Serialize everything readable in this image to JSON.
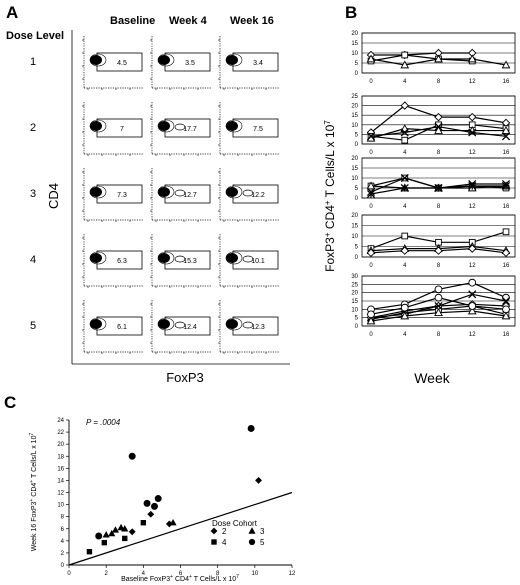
{
  "panel_labels": {
    "a": "A",
    "b": "B",
    "c": "C"
  },
  "panel_a": {
    "row_header": "Dose Level",
    "columns": [
      "Baseline",
      "Week 4",
      "Week 16"
    ],
    "rows": [
      {
        "level": "1",
        "pct": [
          "4.5",
          "3.5",
          "3.4"
        ]
      },
      {
        "level": "2",
        "pct": [
          "7",
          "17.7",
          "7.5"
        ]
      },
      {
        "level": "3",
        "pct": [
          "7.3",
          "12.7",
          "12.2"
        ]
      },
      {
        "level": "4",
        "pct": [
          "6.3",
          "15.3",
          "10.1"
        ]
      },
      {
        "level": "5",
        "pct": [
          "6.1",
          "12.4",
          "12.3"
        ]
      }
    ],
    "y_axis_label": "CD4",
    "x_axis_label": "FoxP3"
  },
  "chart_data": [
    {
      "type": "line",
      "panel": "B",
      "ylabel": "FoxP3+ CD4+ T Cells/L x 10^7",
      "xlabel": "Week",
      "x_ticks": [
        "0",
        "4",
        "8",
        "12",
        "16"
      ],
      "subpanels": [
        {
          "dose_level": 1,
          "ylim": [
            0,
            20
          ],
          "y_ticks": [
            "0",
            "5",
            "10",
            "15",
            "20"
          ],
          "series": [
            {
              "marker": "diamond",
              "x": [
                0,
                4,
                8,
                12
              ],
              "values": [
                9,
                9,
                10,
                10
              ]
            },
            {
              "marker": "square",
              "x": [
                0,
                4,
                8,
                12
              ],
              "values": [
                6,
                9,
                7,
                6
              ]
            },
            {
              "marker": "triangle",
              "x": [
                0,
                4,
                8,
                12,
                16
              ],
              "values": [
                7,
                4,
                7,
                7,
                4
              ]
            }
          ]
        },
        {
          "dose_level": 2,
          "ylim": [
            0,
            25
          ],
          "y_ticks": [
            "0",
            "5",
            "10",
            "15",
            "20",
            "25"
          ],
          "series": [
            {
              "marker": "diamond",
              "x": [
                0,
                4,
                8,
                12,
                16
              ],
              "values": [
                6,
                20,
                14,
                14,
                11
              ]
            },
            {
              "marker": "square",
              "x": [
                0,
                4,
                8,
                12,
                16
              ],
              "values": [
                4,
                2,
                10,
                10,
                8
              ]
            },
            {
              "marker": "triangle",
              "x": [
                0,
                4,
                8,
                12,
                16
              ],
              "values": [
                3,
                8,
                7,
                7,
                7
              ]
            },
            {
              "marker": "x",
              "x": [
                0,
                4,
                8,
                12,
                16
              ],
              "values": [
                4,
                6,
                9,
                6,
                4
              ]
            }
          ]
        },
        {
          "dose_level": 3,
          "ylim": [
            0,
            20
          ],
          "y_ticks": [
            "0",
            "5",
            "10",
            "15",
            "20"
          ],
          "series": [
            {
              "marker": "square",
              "x": [
                0,
                4,
                8,
                12,
                16
              ],
              "values": [
                6,
                10,
                5,
                6,
                5
              ]
            },
            {
              "marker": "triangle",
              "x": [
                0,
                4,
                8,
                12,
                16
              ],
              "values": [
                6,
                5,
                5,
                5,
                6
              ]
            },
            {
              "marker": "x",
              "x": [
                0,
                4,
                8,
                12,
                16
              ],
              "values": [
                3,
                10,
                5,
                7,
                7
              ]
            },
            {
              "marker": "asterisk",
              "x": [
                0,
                4,
                8,
                12,
                16
              ],
              "values": [
                2,
                5,
                5,
                6,
                6
              ]
            }
          ]
        },
        {
          "dose_level": 4,
          "ylim": [
            0,
            20
          ],
          "y_ticks": [
            "0",
            "5",
            "10",
            "15",
            "20"
          ],
          "series": [
            {
              "marker": "square",
              "x": [
                0,
                4,
                8,
                12,
                16
              ],
              "values": [
                4,
                10,
                7,
                7,
                12
              ]
            },
            {
              "marker": "triangle",
              "x": [
                0,
                4,
                8,
                12,
                16
              ],
              "values": [
                3,
                4,
                4,
                5,
                3
              ]
            },
            {
              "marker": "diamond",
              "x": [
                0,
                4,
                8,
                12,
                16
              ],
              "values": [
                2,
                3,
                3,
                4,
                2
              ]
            }
          ]
        },
        {
          "dose_level": 5,
          "ylim": [
            0,
            30
          ],
          "y_ticks": [
            "0",
            "5",
            "10",
            "15",
            "20",
            "25",
            "30"
          ],
          "series": [
            {
              "marker": "circle",
              "x": [
                0,
                4,
                8,
                12,
                16
              ],
              "values": [
                10,
                13,
                22,
                26,
                17
              ]
            },
            {
              "marker": "square",
              "x": [
                0,
                4,
                8,
                12,
                16
              ],
              "values": [
                4,
                8,
                10,
                12,
                7
              ]
            },
            {
              "marker": "diamond",
              "x": [
                0,
                4,
                8,
                12,
                16
              ],
              "values": [
                5,
                7,
                12,
                13,
                12
              ]
            },
            {
              "marker": "x",
              "x": [
                0,
                4,
                8,
                12,
                16
              ],
              "values": [
                5,
                9,
                12,
                19,
                15
              ]
            },
            {
              "marker": "triangle",
              "x": [
                0,
                4,
                8,
                12,
                16
              ],
              "values": [
                3,
                6,
                8,
                9,
                6
              ]
            },
            {
              "marker": "circle-open",
              "x": [
                0,
                4,
                8,
                12,
                16
              ],
              "values": [
                7,
                11,
                17,
                12,
                10
              ]
            }
          ]
        }
      ]
    },
    {
      "type": "scatter",
      "panel": "C",
      "annotation": "P = .0004",
      "xlabel": "Baseline FoxP3+ CD4+ T Cells/L x 10^7",
      "ylabel": "Week 16 FoxP3+ CD4+ T Cells/L x 10^7",
      "xlim": [
        0,
        12
      ],
      "ylim": [
        0,
        24
      ],
      "x_ticks": [
        "0",
        "2",
        "4",
        "6",
        "8",
        "10",
        "12"
      ],
      "y_ticks": [
        "0",
        "2",
        "4",
        "6",
        "8",
        "10",
        "12",
        "14",
        "16",
        "18",
        "20",
        "22",
        "24"
      ],
      "identity_line": true,
      "legend_title": "Dose Cohort",
      "legend": [
        {
          "label": "2",
          "marker": "diamond"
        },
        {
          "label": "3",
          "marker": "triangle"
        },
        {
          "label": "4",
          "marker": "square"
        },
        {
          "label": "5",
          "marker": "circle"
        }
      ],
      "series": [
        {
          "name": "2",
          "marker": "diamond",
          "points": [
            [
              3.4,
              5.5
            ],
            [
              4.4,
              8.4
            ],
            [
              5.4,
              6.8
            ],
            [
              10.2,
              14.0
            ]
          ]
        },
        {
          "name": "3",
          "marker": "triangle",
          "points": [
            [
              2.0,
              5.0
            ],
            [
              2.3,
              5.2
            ],
            [
              2.5,
              5.8
            ],
            [
              2.8,
              6.2
            ],
            [
              3.0,
              6.0
            ],
            [
              5.6,
              7.0
            ]
          ]
        },
        {
          "name": "4",
          "marker": "square",
          "points": [
            [
              1.1,
              2.2
            ],
            [
              1.9,
              3.7
            ],
            [
              3.0,
              4.4
            ],
            [
              4.0,
              7.0
            ]
          ]
        },
        {
          "name": "5",
          "marker": "circle",
          "points": [
            [
              1.6,
              4.8
            ],
            [
              3.4,
              18.0
            ],
            [
              4.2,
              10.2
            ],
            [
              4.6,
              9.7
            ],
            [
              4.8,
              11.0
            ],
            [
              9.8,
              22.6
            ]
          ]
        }
      ]
    }
  ]
}
